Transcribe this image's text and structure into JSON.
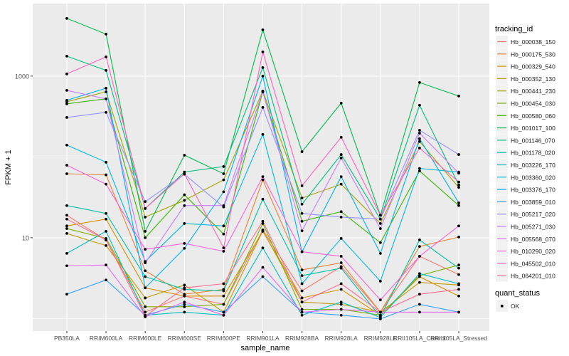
{
  "chart_data": {
    "type": "line",
    "xlabel": "sample_name",
    "ylabel": "FPKM + 1",
    "y_scale": "log10",
    "ylim": [
      0.7,
      7900
    ],
    "y_ticks": [
      10,
      1000
    ],
    "y_tick_labels": [
      "10",
      "1000"
    ],
    "grid": true,
    "legend_position": "right",
    "categories": [
      "PB350LA",
      "RRIM600LA",
      "RRIM600LE",
      "RRIM600SE",
      "RRIM600PE",
      "RRIM901LA",
      "RRIM928BA",
      "RRIM928LA",
      "RRIM928LE",
      "RRII105LA_Control",
      "RRII105LA_Stressed"
    ],
    "legend_title": "tracking_id",
    "shape_legend_title": "quant_status",
    "shape_legend_items": [
      "OK"
    ],
    "series": [
      {
        "name": "Hb_000038_150",
        "color": "#F8766D",
        "values": [
          19,
          9.4,
          1.2,
          1.9,
          1.5,
          12.5,
          2.2,
          4.4,
          1.2,
          5.9,
          3.5
        ]
      },
      {
        "name": "Hb_000175_530",
        "color": "#EA8331",
        "values": [
          62,
          60,
          3.9,
          2.0,
          2.3,
          52,
          4.0,
          4.9,
          1.2,
          7.8,
          10.2
        ]
      },
      {
        "name": "Hb_000329_540",
        "color": "#D89000",
        "values": [
          14,
          17,
          2.4,
          1.9,
          1.9,
          12,
          1.8,
          2.3,
          1.1,
          3.3,
          1.9
        ]
      },
      {
        "name": "Hb_000352_130",
        "color": "#C09B00",
        "values": [
          11.3,
          8.0,
          1.8,
          2.6,
          1.2,
          12.2,
          1.6,
          1.5,
          1.2,
          2.8,
          2.6
        ]
      },
      {
        "name": "Hb_000441_230",
        "color": "#A3A500",
        "values": [
          482,
          640,
          18,
          29,
          52,
          653,
          31,
          46,
          15,
          155,
          42
        ]
      },
      {
        "name": "Hb_000454_030",
        "color": "#7CAE00",
        "values": [
          13,
          9.8,
          1.4,
          1.4,
          1.5,
          15,
          1.3,
          1.3,
          1.1,
          3.4,
          4.6
        ]
      },
      {
        "name": "Hb_000580_060",
        "color": "#39B600",
        "values": [
          454,
          523,
          10,
          34,
          11.1,
          640,
          16,
          21,
          8.7,
          67,
          25
        ]
      },
      {
        "name": "Hb_001017_100",
        "color": "#00BB4E",
        "values": [
          5176,
          3311,
          12,
          105,
          62,
          3741,
          116,
          463,
          19,
          833,
          567
        ]
      },
      {
        "name": "Hb_001146_070",
        "color": "#00BF7D",
        "values": [
          1766,
          1178,
          23,
          65,
          76,
          1276,
          26,
          107,
          17,
          436,
          45
        ]
      },
      {
        "name": "Hb_001178_020",
        "color": "#00C1A3",
        "values": [
          25,
          20,
          3.3,
          2.3,
          2.2,
          30,
          3.4,
          4.2,
          1.05,
          9.4,
          4.2
        ]
      },
      {
        "name": "Hb_003226_170",
        "color": "#00BFC4",
        "values": [
          6.4,
          12,
          1.1,
          1.2,
          1.1,
          7.5,
          1.1,
          1.6,
          1.03,
          3.6,
          2.7
        ]
      },
      {
        "name": "Hb_003360_020",
        "color": "#00BAE0",
        "values": [
          140,
          86,
          5.1,
          15,
          14,
          190,
          2.7,
          9.8,
          2.9,
          72,
          65
        ]
      },
      {
        "name": "Hb_003376_170",
        "color": "#00B0F6",
        "values": [
          502,
          708,
          2.4,
          7.4,
          37,
          1000,
          6.7,
          57,
          6.4,
          168,
          27
        ]
      },
      {
        "name": "Hb_003859_010",
        "color": "#35A2FF",
        "values": [
          2.0,
          3.0,
          1.1,
          1.5,
          1.2,
          3.3,
          1.2,
          1.1,
          0.99,
          1.5,
          1.2
        ]
      },
      {
        "name": "Hb_005217_020",
        "color": "#9590FF",
        "values": [
          308,
          356,
          28,
          61,
          24,
          410,
          20,
          18,
          17,
          214,
          107
        ]
      },
      {
        "name": "Hb_005271_030",
        "color": "#C77CFF",
        "values": [
          667,
          523,
          4.9,
          25,
          25,
          640,
          12.2,
          97,
          13,
          197,
          63
        ]
      },
      {
        "name": "Hb_005568_070",
        "color": "#E76BF3",
        "values": [
          4.5,
          4.6,
          1.05,
          1.6,
          1.1,
          4.3,
          1.2,
          1.3,
          1.2,
          1.2,
          1.2
        ]
      },
      {
        "name": "Hb_010290_020",
        "color": "#FA62DB",
        "values": [
          79,
          46,
          7.2,
          8.5,
          6.8,
          57,
          6.7,
          5.9,
          1.7,
          5.9,
          14
        ]
      },
      {
        "name": "Hb_045502_010",
        "color": "#FF62BC",
        "values": [
          1064,
          1730,
          23,
          62,
          7.5,
          1995,
          44,
          175,
          19,
          129,
          49
        ]
      },
      {
        "name": "Hb_064201_010",
        "color": "#FF6C91",
        "values": [
          17,
          9.4,
          1.07,
          2.4,
          2.7,
          16,
          1.6,
          2.7,
          1.2,
          2.0,
          2.3
        ]
      }
    ]
  }
}
